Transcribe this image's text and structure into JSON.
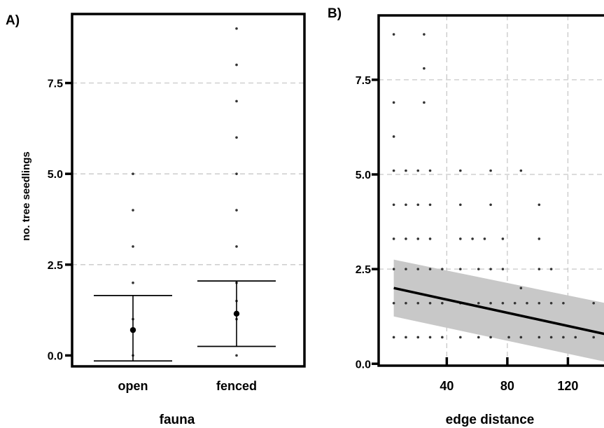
{
  "chart_data": [
    {
      "panel_label": "A)",
      "type": "scatter",
      "xlabel": "fauna",
      "ylabel": "no. tree seedlings",
      "categories": [
        "open",
        "fenced"
      ],
      "yticks": [
        "0.0",
        "2.5",
        "5.0",
        "7.5"
      ],
      "ylim": [
        -0.3,
        9.4
      ],
      "grid": true,
      "points": {
        "open": [
          0,
          1,
          2,
          3,
          4,
          5
        ],
        "fenced": [
          0,
          1,
          1.5,
          2,
          3,
          4,
          5,
          6,
          7,
          8,
          9
        ]
      },
      "estimates": [
        {
          "category": "open",
          "mean": 0.7,
          "lower": -0.15,
          "upper": 1.65
        },
        {
          "category": "fenced",
          "mean": 1.15,
          "lower": 0.25,
          "upper": 2.05
        }
      ]
    },
    {
      "panel_label": "B)",
      "type": "scatter",
      "xlabel": "edge distance",
      "ylabel": "",
      "xticks": [
        40,
        80,
        120
      ],
      "yticks": [
        "0.0",
        "2.5",
        "5.0",
        "7.5"
      ],
      "xlim": [
        -5,
        148
      ],
      "ylim": [
        -0.05,
        9.2
      ],
      "grid": true,
      "points": [
        {
          "x": 5,
          "y": 0.7
        },
        {
          "x": 13,
          "y": 0.7
        },
        {
          "x": 21,
          "y": 0.7
        },
        {
          "x": 29,
          "y": 0.7
        },
        {
          "x": 37,
          "y": 0.7
        },
        {
          "x": 49,
          "y": 0.7
        },
        {
          "x": 61,
          "y": 0.7
        },
        {
          "x": 69,
          "y": 0.7
        },
        {
          "x": 81,
          "y": 0.7
        },
        {
          "x": 89,
          "y": 0.7
        },
        {
          "x": 101,
          "y": 0.7
        },
        {
          "x": 109,
          "y": 0.7
        },
        {
          "x": 117,
          "y": 0.7
        },
        {
          "x": 125,
          "y": 0.7
        },
        {
          "x": 137,
          "y": 0.7
        },
        {
          "x": 145,
          "y": 0.7
        },
        {
          "x": 5,
          "y": 1.6
        },
        {
          "x": 13,
          "y": 1.6
        },
        {
          "x": 21,
          "y": 1.6
        },
        {
          "x": 29,
          "y": 1.6
        },
        {
          "x": 37,
          "y": 1.6
        },
        {
          "x": 49,
          "y": 1.6
        },
        {
          "x": 61,
          "y": 1.6
        },
        {
          "x": 69,
          "y": 1.6
        },
        {
          "x": 77,
          "y": 1.6
        },
        {
          "x": 85,
          "y": 1.6
        },
        {
          "x": 93,
          "y": 1.6
        },
        {
          "x": 101,
          "y": 1.6
        },
        {
          "x": 109,
          "y": 1.6
        },
        {
          "x": 117,
          "y": 1.6
        },
        {
          "x": 137,
          "y": 1.6
        },
        {
          "x": 145,
          "y": 1.6
        },
        {
          "x": 89,
          "y": 2.0
        },
        {
          "x": 5,
          "y": 2.5
        },
        {
          "x": 13,
          "y": 2.5
        },
        {
          "x": 21,
          "y": 2.5
        },
        {
          "x": 29,
          "y": 2.5
        },
        {
          "x": 37,
          "y": 2.5
        },
        {
          "x": 49,
          "y": 2.5
        },
        {
          "x": 61,
          "y": 2.5
        },
        {
          "x": 69,
          "y": 2.5
        },
        {
          "x": 77,
          "y": 2.5
        },
        {
          "x": 101,
          "y": 2.5
        },
        {
          "x": 109,
          "y": 2.5
        },
        {
          "x": 5,
          "y": 3.3
        },
        {
          "x": 13,
          "y": 3.3
        },
        {
          "x": 21,
          "y": 3.3
        },
        {
          "x": 29,
          "y": 3.3
        },
        {
          "x": 49,
          "y": 3.3
        },
        {
          "x": 57,
          "y": 3.3
        },
        {
          "x": 65,
          "y": 3.3
        },
        {
          "x": 77,
          "y": 3.3
        },
        {
          "x": 101,
          "y": 3.3
        },
        {
          "x": 5,
          "y": 4.2
        },
        {
          "x": 13,
          "y": 4.2
        },
        {
          "x": 21,
          "y": 4.2
        },
        {
          "x": 29,
          "y": 4.2
        },
        {
          "x": 49,
          "y": 4.2
        },
        {
          "x": 69,
          "y": 4.2
        },
        {
          "x": 101,
          "y": 4.2
        },
        {
          "x": 5,
          "y": 5.1
        },
        {
          "x": 13,
          "y": 5.1
        },
        {
          "x": 21,
          "y": 5.1
        },
        {
          "x": 29,
          "y": 5.1
        },
        {
          "x": 49,
          "y": 5.1
        },
        {
          "x": 69,
          "y": 5.1
        },
        {
          "x": 89,
          "y": 5.1
        },
        {
          "x": 5,
          "y": 6.0
        },
        {
          "x": 5,
          "y": 6.9
        },
        {
          "x": 25,
          "y": 6.9
        },
        {
          "x": 25,
          "y": 7.8
        },
        {
          "x": 5,
          "y": 8.7
        },
        {
          "x": 25,
          "y": 8.7
        }
      ],
      "fit": {
        "x": [
          5,
          145
        ],
        "y": [
          2.0,
          0.78
        ]
      },
      "ci": {
        "x": [
          5,
          145
        ],
        "lower": [
          1.25,
          0.05
        ],
        "upper": [
          2.75,
          1.6
        ]
      }
    }
  ]
}
